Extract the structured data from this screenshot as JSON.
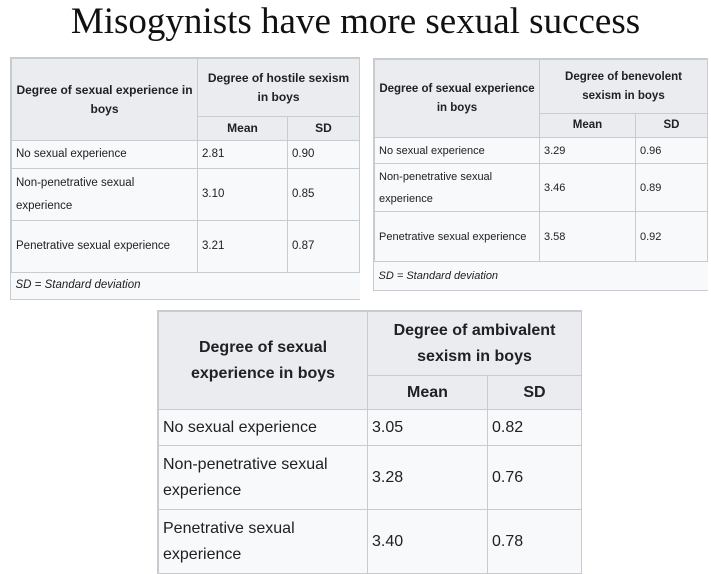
{
  "title": "Misogynists have more sexual success",
  "table_hostile": {
    "row_header": "Degree of sexual experience in boys",
    "group_header": "Degree of hostile sexism in boys",
    "col_mean": "Mean",
    "col_sd": "SD",
    "rows": [
      {
        "label": "No sexual experience",
        "mean": "2.81",
        "sd": "0.90"
      },
      {
        "label": "Non-penetrative sexual experience",
        "mean": "3.10",
        "sd": "0.85"
      },
      {
        "label": "Penetrative sexual experience",
        "mean": "3.21",
        "sd": "0.87"
      }
    ],
    "footnote": "SD = Standard deviation"
  },
  "table_benevolent": {
    "row_header": "Degree of sexual experience in boys",
    "group_header": "Degree of benevolent sexism in boys",
    "col_mean": "Mean",
    "col_sd": "SD",
    "rows": [
      {
        "label": "No sexual experience",
        "mean": "3.29",
        "sd": "0.96"
      },
      {
        "label": "Non-penetrative sexual experience",
        "mean": "3.46",
        "sd": "0.89"
      },
      {
        "label": "Penetrative sexual experience",
        "mean": "3.58",
        "sd": "0.92"
      }
    ],
    "footnote": "SD = Standard deviation"
  },
  "table_ambivalent": {
    "row_header": "Degree of sexual experience in boys",
    "group_header": "Degree of ambivalent sexism in boys",
    "col_mean": "Mean",
    "col_sd": "SD",
    "rows": [
      {
        "label": "No sexual experience",
        "mean": "3.05",
        "sd": "0.82"
      },
      {
        "label": "Non-penetrative sexual experience",
        "mean": "3.28",
        "sd": "0.76"
      },
      {
        "label": "Penetrative sexual experience",
        "mean": "3.40",
        "sd": "0.78"
      }
    ]
  }
}
